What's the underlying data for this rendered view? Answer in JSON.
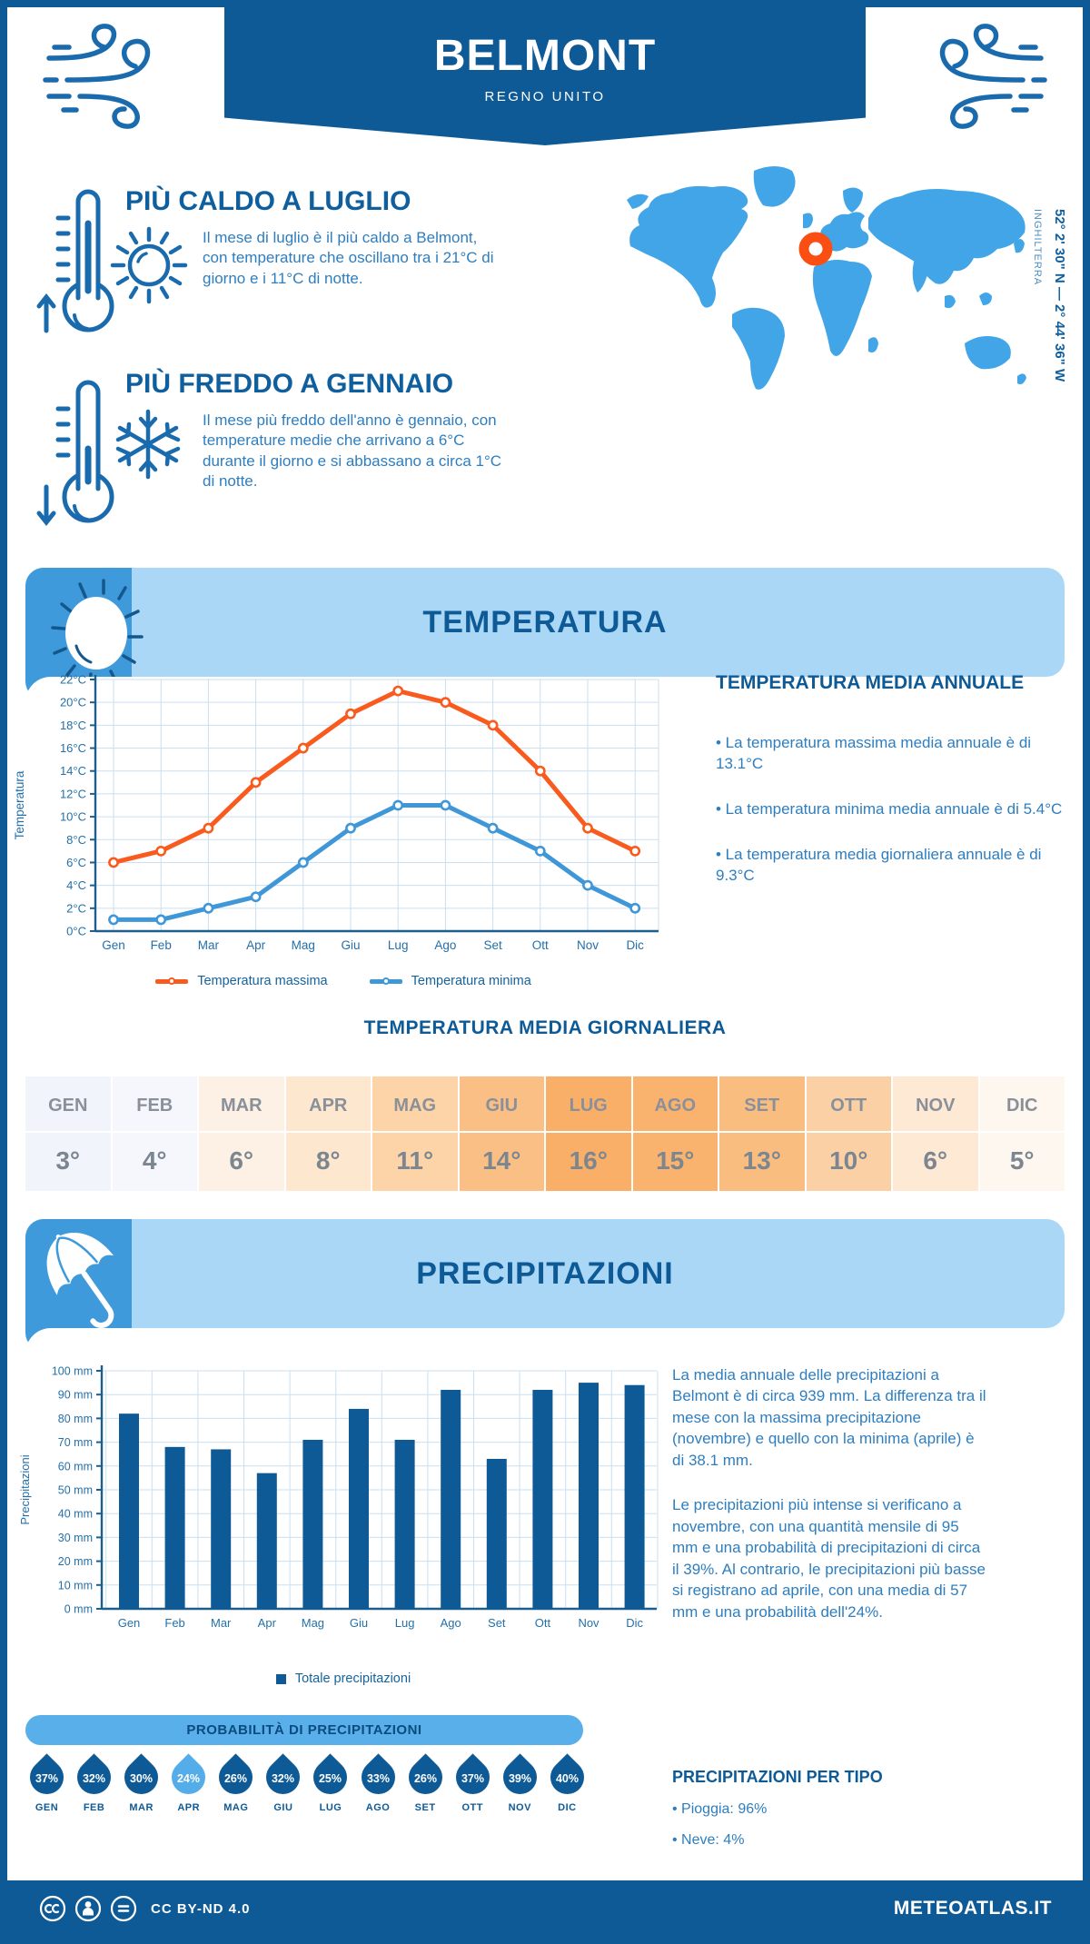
{
  "header": {
    "title": "BELMONT",
    "subtitle": "REGNO UNITO",
    "banner_color": "#0E5A96"
  },
  "location": {
    "coordinates": "52° 2' 30\" N — 2° 44' 36\" W",
    "region": "INGHILTERRA",
    "map_color": "#41A5E7",
    "marker_color": "#FB4E12"
  },
  "highlights": [
    {
      "title": "PIÙ CALDO A LUGLIO",
      "text": "Il mese di luglio è il più caldo a Belmont, con temperature che oscillano tra i 21°C di giorno e i 11°C di notte."
    },
    {
      "title": "PIÙ FREDDO A GENNAIO",
      "text": "Il mese più freddo dell'anno è gennaio, con temperature medie che arrivano a 6°C durante il giorno e si abbassano a circa 1°C di notte."
    }
  ],
  "temperature_section": {
    "band_title": "TEMPERATURA",
    "annual": {
      "title": "TEMPERATURA MEDIA ANNUALE",
      "bullets": [
        "• La temperatura massima media annuale è di 13.1°C",
        "• La temperatura minima media annuale è di 5.4°C",
        "• La temperatura media giornaliera annuale è di 9.3°C"
      ]
    },
    "daily": {
      "title": "TEMPERATURA MEDIA GIORNALIERA",
      "months": [
        "GEN",
        "FEB",
        "MAR",
        "APR",
        "MAG",
        "GIU",
        "LUG",
        "AGO",
        "SET",
        "OTT",
        "NOV",
        "DIC"
      ],
      "values": [
        "3°",
        "4°",
        "6°",
        "8°",
        "11°",
        "14°",
        "16°",
        "15°",
        "13°",
        "10°",
        "6°",
        "5°"
      ],
      "cell_colors": [
        "#F1F4FA",
        "#F6F7FD",
        "#FCF1E4",
        "#FDE7CE",
        "#FCD4A8",
        "#FABF85",
        "#F9AF67",
        "#F9B36E",
        "#FABD80",
        "#FBD0A4",
        "#FDE9D4",
        "#FEF7F0"
      ]
    }
  },
  "precipitation_section": {
    "band_title": "PRECIPITAZIONI",
    "summary": [
      "La media annuale delle precipitazioni a Belmont è di circa 939 mm. La differenza tra il mese con la massima precipitazione (novembre) e quello con la minima (aprile) è di 38.1 mm.",
      "Le precipitazioni più intense si verificano a novembre, con una quantità mensile di 95 mm e una probabilità di precipitazioni di circa il 39%. Al contrario, le precipitazioni più basse si registrano ad aprile, con una media di 57 mm e una probabilità dell'24%."
    ],
    "probability": {
      "title": "PROBABILITÀ DI PRECIPITAZIONI",
      "months": [
        "GEN",
        "FEB",
        "MAR",
        "APR",
        "MAG",
        "GIU",
        "LUG",
        "AGO",
        "SET",
        "OTT",
        "NOV",
        "DIC"
      ],
      "values": [
        "37%",
        "32%",
        "30%",
        "24%",
        "26%",
        "32%",
        "25%",
        "33%",
        "26%",
        "37%",
        "39%",
        "40%"
      ],
      "highlight_index": 3,
      "drop_color": "#0E5A96",
      "highlight_color": "#54ACE8"
    },
    "by_type": {
      "title": "PRECIPITAZIONI PER TIPO",
      "bullets": [
        "• Pioggia: 96%",
        "• Neve: 4%"
      ]
    }
  },
  "footer": {
    "license": "CC BY-ND 4.0",
    "brand": "METEOATLAS.IT",
    "background": "#0E5A96"
  },
  "chart_data": [
    {
      "type": "line",
      "title": "",
      "categories": [
        "Gen",
        "Feb",
        "Mar",
        "Apr",
        "Mag",
        "Giu",
        "Lug",
        "Ago",
        "Set",
        "Ott",
        "Nov",
        "Dic"
      ],
      "series": [
        {
          "name": "Temperatura massima",
          "color": "#F95B1E",
          "values": [
            6,
            7,
            9,
            13,
            16,
            19,
            21,
            20,
            18,
            14,
            9,
            7
          ]
        },
        {
          "name": "Temperatura minima",
          "color": "#3F97D8",
          "values": [
            1,
            1,
            2,
            3,
            6,
            9,
            11,
            11,
            9,
            7,
            4,
            2
          ]
        }
      ],
      "xlabel": "",
      "ylabel": "Temperatura",
      "ylim": [
        0,
        22
      ],
      "ytick_step": 2,
      "ytick_suffix": "°C",
      "grid": true,
      "legend_position": "bottom"
    },
    {
      "type": "bar",
      "title": "",
      "categories": [
        "Gen",
        "Feb",
        "Mar",
        "Apr",
        "Mag",
        "Giu",
        "Lug",
        "Ago",
        "Set",
        "Ott",
        "Nov",
        "Dic"
      ],
      "series": [
        {
          "name": "Totale precipitazioni",
          "color": "#0E5A96",
          "values": [
            82,
            68,
            67,
            57,
            71,
            84,
            71,
            92,
            63,
            92,
            95,
            94
          ]
        }
      ],
      "xlabel": "",
      "ylabel": "Precipitazioni",
      "ylim": [
        0,
        100
      ],
      "ytick_step": 10,
      "ytick_suffix": " mm",
      "grid": true,
      "legend_position": "bottom"
    }
  ]
}
